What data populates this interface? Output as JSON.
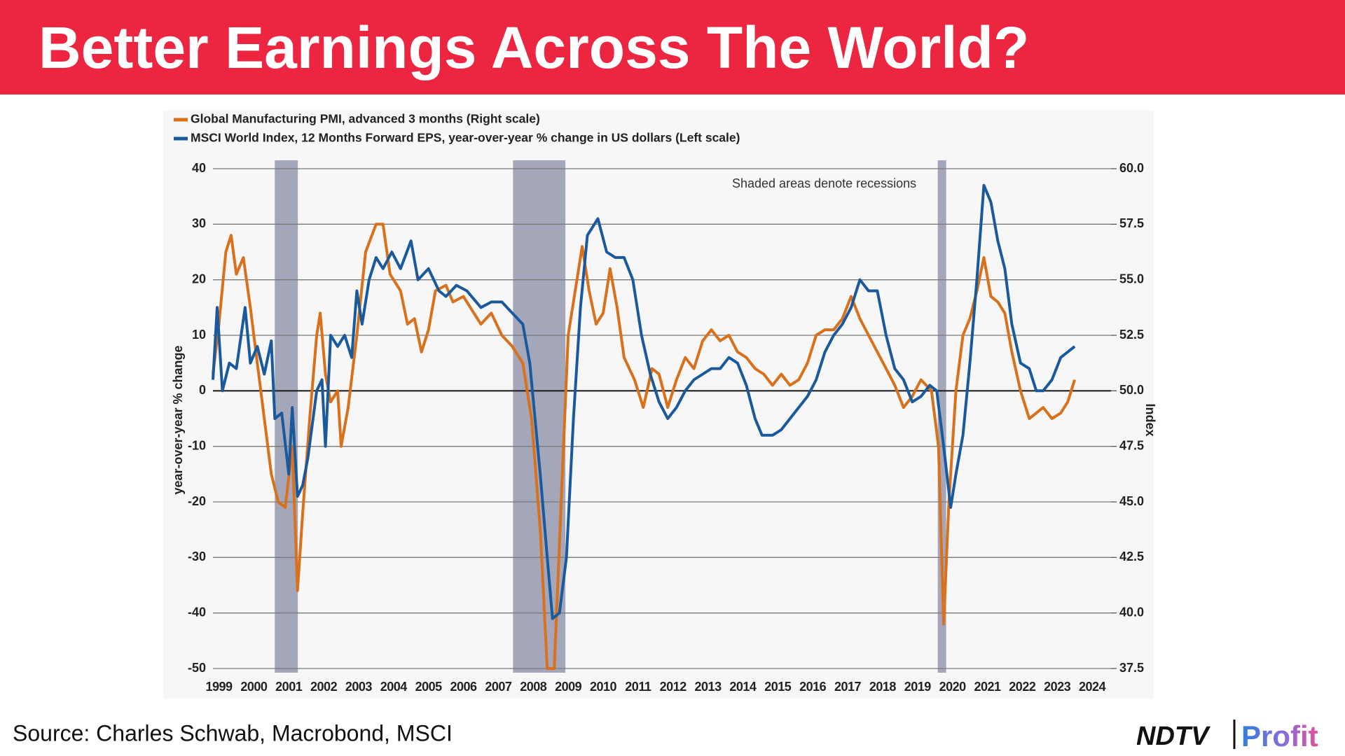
{
  "header": {
    "title": "Better Earnings Across The World?"
  },
  "chart_data": {
    "type": "line",
    "annotation": "Shaded areas denote recessions",
    "ylabel": "year-over-year % change",
    "y2label": "Index",
    "xlim": [
      1999.33,
      2024.92
    ],
    "xticks": [
      {
        "value": 1999.5,
        "label": "1999"
      },
      {
        "value": 2000.5,
        "label": "2000"
      },
      {
        "value": 2001.5,
        "label": "2001"
      },
      {
        "value": 2002.5,
        "label": "2002"
      },
      {
        "value": 2003.5,
        "label": "2003"
      },
      {
        "value": 2004.5,
        "label": "2004"
      },
      {
        "value": 2005.5,
        "label": "2005"
      },
      {
        "value": 2006.5,
        "label": "2006"
      },
      {
        "value": 2007.5,
        "label": "2007"
      },
      {
        "value": 2008.5,
        "label": "2008"
      },
      {
        "value": 2009.5,
        "label": "2009"
      },
      {
        "value": 2010.5,
        "label": "2010"
      },
      {
        "value": 2011.5,
        "label": "2011"
      },
      {
        "value": 2012.5,
        "label": "2012"
      },
      {
        "value": 2013.5,
        "label": "2013"
      },
      {
        "value": 2014.5,
        "label": "2014"
      },
      {
        "value": 2015.5,
        "label": "2015"
      },
      {
        "value": 2016.5,
        "label": "2016"
      },
      {
        "value": 2017.5,
        "label": "2017"
      },
      {
        "value": 2018.5,
        "label": "2018"
      },
      {
        "value": 2019.5,
        "label": "2019"
      },
      {
        "value": 2020.5,
        "label": "2020"
      },
      {
        "value": 2021.5,
        "label": "2021"
      },
      {
        "value": 2022.5,
        "label": "2022"
      },
      {
        "value": 2023.5,
        "label": "2023"
      },
      {
        "value": 2024.5,
        "label": "2024"
      }
    ],
    "ylim": [
      -50,
      40
    ],
    "yticks": [
      -50,
      -40,
      -30,
      -20,
      -10,
      0,
      10,
      20,
      30,
      40
    ],
    "y2lim": [
      37.5,
      60
    ],
    "y2ticks": [
      37.5,
      {
        "value": 40,
        "label": "40.0"
      },
      42.5,
      {
        "value": 45,
        "label": "45.0"
      },
      47.5,
      {
        "value": 50,
        "label": "50.0"
      },
      52.5,
      {
        "value": 55,
        "label": "55.0"
      },
      57.5,
      {
        "value": 60,
        "label": "60.0"
      }
    ],
    "grid": true,
    "recessions": [
      [
        2001.1,
        2001.76
      ],
      [
        2007.92,
        2009.42
      ],
      [
        2020.08,
        2020.32
      ]
    ],
    "recession_color": "#9a9db2",
    "series": [
      {
        "name": "Global Manufacturing PMI, advanced 3 months (Right scale)",
        "color": "#d9711c",
        "axis": "y2",
        "x": [
          1999.33,
          1999.5,
          1999.7,
          1999.85,
          2000.0,
          2000.2,
          2000.4,
          2000.6,
          2000.8,
          2001.0,
          2001.2,
          2001.4,
          2001.6,
          2001.75,
          2001.9,
          2002.1,
          2002.3,
          2002.4,
          2002.55,
          2002.7,
          2002.9,
          2003.0,
          2003.2,
          2003.45,
          2003.7,
          2004.0,
          2004.2,
          2004.4,
          2004.7,
          2004.9,
          2005.1,
          2005.3,
          2005.5,
          2005.7,
          2006.0,
          2006.2,
          2006.5,
          2006.8,
          2007.0,
          2007.3,
          2007.6,
          2007.9,
          2008.2,
          2008.45,
          2008.7,
          2008.9,
          2009.1,
          2009.3,
          2009.5,
          2009.7,
          2009.9,
          2010.1,
          2010.3,
          2010.5,
          2010.7,
          2010.9,
          2011.1,
          2011.4,
          2011.65,
          2011.9,
          2012.1,
          2012.35,
          2012.6,
          2012.85,
          2013.1,
          2013.35,
          2013.6,
          2013.85,
          2014.1,
          2014.35,
          2014.6,
          2014.85,
          2015.1,
          2015.35,
          2015.6,
          2015.85,
          2016.1,
          2016.35,
          2016.6,
          2016.85,
          2017.1,
          2017.35,
          2017.6,
          2017.85,
          2018.1,
          2018.35,
          2018.6,
          2018.85,
          2019.1,
          2019.35,
          2019.6,
          2019.9,
          2020.1,
          2020.25,
          2020.4,
          2020.6,
          2020.8,
          2021.0,
          2021.2,
          2021.4,
          2021.6,
          2021.8,
          2022.0,
          2022.2,
          2022.45,
          2022.7,
          2022.9,
          2023.1,
          2023.35,
          2023.6,
          2023.8,
          2024.0
        ],
        "values": [
          50.75,
          53,
          56.25,
          57,
          55.25,
          56,
          53.75,
          51.25,
          48.75,
          46.25,
          45,
          44.75,
          47.5,
          41,
          44.5,
          48.75,
          52.5,
          53.5,
          50.75,
          49.5,
          50,
          47.5,
          49.25,
          52.5,
          56.25,
          57.5,
          57.5,
          55.25,
          54.5,
          53,
          53.25,
          51.75,
          52.75,
          54.5,
          54.75,
          54,
          54.25,
          53.5,
          53,
          53.5,
          52.5,
          52,
          51.25,
          48.75,
          43.75,
          37.5,
          37.5,
          45,
          52.5,
          54.5,
          56.5,
          54.5,
          53,
          53.5,
          55.5,
          53.75,
          51.5,
          50.5,
          49.25,
          51,
          50.75,
          49.25,
          50.5,
          51.5,
          51,
          52.25,
          52.75,
          52.25,
          52.5,
          51.75,
          51.5,
          51,
          50.75,
          50.25,
          50.75,
          50.25,
          50.5,
          51.25,
          52.5,
          52.75,
          52.75,
          53.25,
          54.25,
          53.25,
          52.5,
          51.75,
          51,
          50.25,
          49.25,
          49.75,
          50.5,
          50,
          47.5,
          39.5,
          45,
          50,
          52.5,
          53.25,
          54.5,
          56,
          54.25,
          54,
          53.5,
          51.75,
          50,
          48.75,
          49,
          49.25,
          48.75,
          49,
          49.5,
          50.5
        ]
      },
      {
        "name": "MSCI World Index, 12 Months Forward EPS, year-over-year % change in US dollars (Left scale)",
        "color": "#1a5a9c",
        "x": [
          1999.33,
          1999.45,
          1999.6,
          1999.8,
          2000.0,
          2000.25,
          2000.4,
          2000.6,
          2000.8,
          2001.0,
          2001.1,
          2001.3,
          2001.5,
          2001.6,
          2001.75,
          2001.9,
          2002.05,
          2002.3,
          2002.45,
          2002.55,
          2002.7,
          2002.9,
          2003.1,
          2003.3,
          2003.45,
          2003.6,
          2003.8,
          2004.0,
          2004.2,
          2004.45,
          2004.7,
          2005.0,
          2005.2,
          2005.5,
          2005.8,
          2006.0,
          2006.3,
          2006.6,
          2007.0,
          2007.3,
          2007.6,
          2007.9,
          2008.2,
          2008.4,
          2008.7,
          2008.9,
          2009.05,
          2009.25,
          2009.45,
          2009.65,
          2009.85,
          2010.05,
          2010.35,
          2010.6,
          2010.85,
          2011.1,
          2011.35,
          2011.6,
          2011.85,
          2012.1,
          2012.35,
          2012.6,
          2012.85,
          2013.1,
          2013.35,
          2013.6,
          2013.85,
          2014.1,
          2014.35,
          2014.6,
          2014.85,
          2015.05,
          2015.35,
          2015.6,
          2015.85,
          2016.1,
          2016.35,
          2016.6,
          2016.85,
          2017.1,
          2017.35,
          2017.6,
          2017.85,
          2018.1,
          2018.35,
          2018.6,
          2018.85,
          2019.1,
          2019.35,
          2019.6,
          2019.85,
          2020.05,
          2020.25,
          2020.45,
          2020.6,
          2020.8,
          2021.0,
          2021.2,
          2021.4,
          2021.6,
          2021.8,
          2022.0,
          2022.2,
          2022.45,
          2022.7,
          2022.9,
          2023.1,
          2023.35,
          2023.6,
          2024.0
        ],
        "values": [
          2,
          15,
          0,
          5,
          4,
          15,
          5,
          8,
          3,
          9,
          -5,
          -4,
          -15,
          -3,
          -19,
          -17,
          -12,
          0,
          2,
          -10,
          10,
          8,
          10,
          6,
          18,
          12,
          20,
          24,
          22,
          25,
          22,
          27,
          20,
          22,
          18,
          17,
          19,
          18,
          15,
          16,
          16,
          14,
          12,
          5,
          -15,
          -30,
          -41,
          -40,
          -30,
          -5,
          15,
          28,
          31,
          25,
          24,
          24,
          20,
          10,
          3,
          -2,
          -5,
          -3,
          0,
          2,
          3,
          4,
          4,
          6,
          5,
          1,
          -5,
          -8,
          -8,
          -7,
          -5,
          -3,
          -1,
          2,
          7,
          10,
          12,
          15,
          20,
          18,
          18,
          10,
          4,
          2,
          -2,
          -1,
          1,
          0,
          -10,
          -21,
          -15,
          -8,
          5,
          20,
          37,
          34,
          27,
          22,
          12,
          5,
          4,
          0,
          0,
          2,
          6,
          8
        ]
      }
    ]
  },
  "footer": {
    "source": "Source: Charles Schwab, Macrobond, MSCI",
    "brand": "NDTV",
    "product": "Profit"
  }
}
